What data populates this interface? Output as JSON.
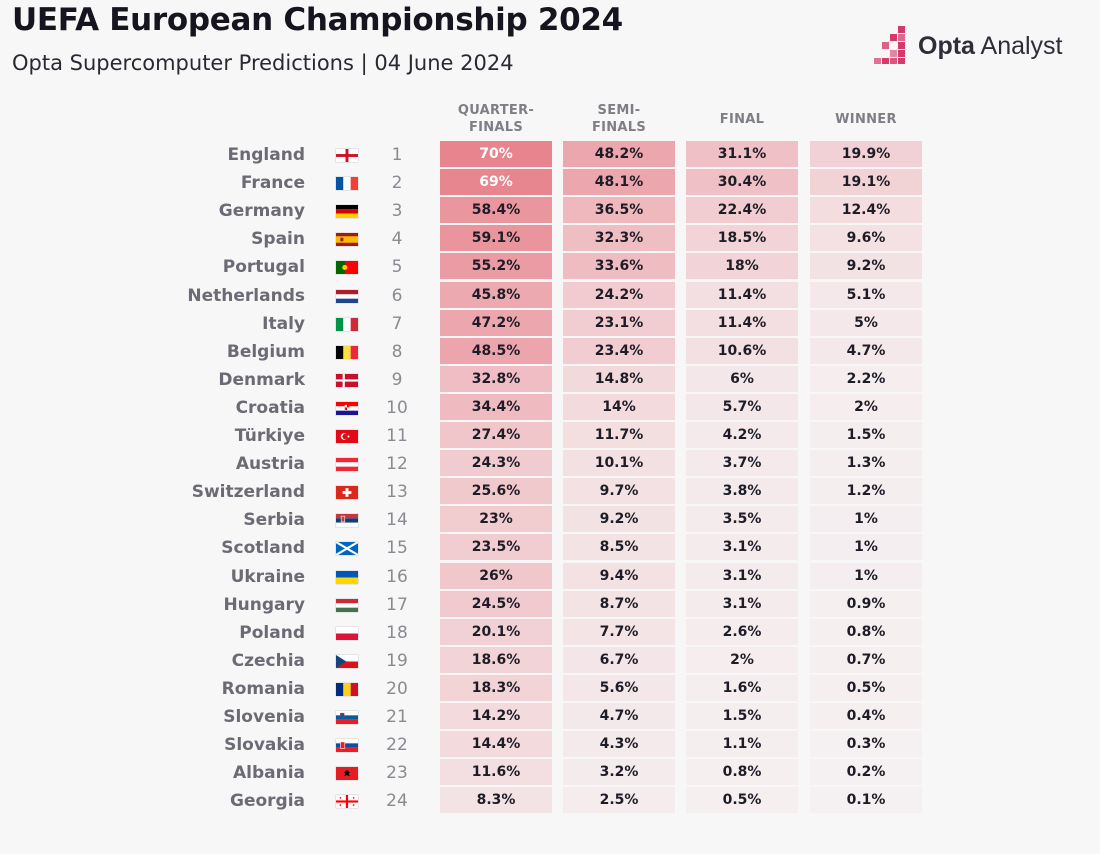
{
  "title": "UEFA European Championship 2024",
  "subtitle": "Opta Supercomputer Predictions | 04 June 2024",
  "logo": {
    "brand_bold": "Opta",
    "brand_light": " Analyst",
    "icon": "opta-bars-icon"
  },
  "colors": {
    "cell_max": "#e8848e",
    "cell_min": "#f5f0f1",
    "text_dark": "#1e1d27",
    "country_text": "#6b6b75"
  },
  "chart_data": {
    "type": "table",
    "title": "UEFA European Championship 2024",
    "subtitle": "Opta Supercomputer Predictions | 04 June 2024",
    "columns": [
      {
        "key": "qf",
        "label": "QUARTER-\nFINALS"
      },
      {
        "key": "sf",
        "label": "SEMI-\nFINALS"
      },
      {
        "key": "final",
        "label": "FINAL"
      },
      {
        "key": "winner",
        "label": "WINNER"
      }
    ],
    "rows": [
      {
        "country": "England",
        "flag": "eng",
        "rank": "1",
        "qf": "70%",
        "sf": "48.2%",
        "final": "31.1%",
        "winner": "19.9%"
      },
      {
        "country": "France",
        "flag": "fra",
        "rank": "2",
        "qf": "69%",
        "sf": "48.1%",
        "final": "30.4%",
        "winner": "19.1%"
      },
      {
        "country": "Germany",
        "flag": "ger",
        "rank": "3",
        "qf": "58.4%",
        "sf": "36.5%",
        "final": "22.4%",
        "winner": "12.4%"
      },
      {
        "country": "Spain",
        "flag": "esp",
        "rank": "4",
        "qf": "59.1%",
        "sf": "32.3%",
        "final": "18.5%",
        "winner": "9.6%"
      },
      {
        "country": "Portugal",
        "flag": "por",
        "rank": "5",
        "qf": "55.2%",
        "sf": "33.6%",
        "final": "18%",
        "winner": "9.2%"
      },
      {
        "country": "Netherlands",
        "flag": "ned",
        "rank": "6",
        "qf": "45.8%",
        "sf": "24.2%",
        "final": "11.4%",
        "winner": "5.1%"
      },
      {
        "country": "Italy",
        "flag": "ita",
        "rank": "7",
        "qf": "47.2%",
        "sf": "23.1%",
        "final": "11.4%",
        "winner": "5%"
      },
      {
        "country": "Belgium",
        "flag": "bel",
        "rank": "8",
        "qf": "48.5%",
        "sf": "23.4%",
        "final": "10.6%",
        "winner": "4.7%"
      },
      {
        "country": "Denmark",
        "flag": "den",
        "rank": "9",
        "qf": "32.8%",
        "sf": "14.8%",
        "final": "6%",
        "winner": "2.2%"
      },
      {
        "country": "Croatia",
        "flag": "cro",
        "rank": "10",
        "qf": "34.4%",
        "sf": "14%",
        "final": "5.7%",
        "winner": "2%"
      },
      {
        "country": "Türkiye",
        "flag": "tur",
        "rank": "11",
        "qf": "27.4%",
        "sf": "11.7%",
        "final": "4.2%",
        "winner": "1.5%"
      },
      {
        "country": "Austria",
        "flag": "aut",
        "rank": "12",
        "qf": "24.3%",
        "sf": "10.1%",
        "final": "3.7%",
        "winner": "1.3%"
      },
      {
        "country": "Switzerland",
        "flag": "sui",
        "rank": "13",
        "qf": "25.6%",
        "sf": "9.7%",
        "final": "3.8%",
        "winner": "1.2%"
      },
      {
        "country": "Serbia",
        "flag": "srb",
        "rank": "14",
        "qf": "23%",
        "sf": "9.2%",
        "final": "3.5%",
        "winner": "1%"
      },
      {
        "country": "Scotland",
        "flag": "sco",
        "rank": "15",
        "qf": "23.5%",
        "sf": "8.5%",
        "final": "3.1%",
        "winner": "1%"
      },
      {
        "country": "Ukraine",
        "flag": "ukr",
        "rank": "16",
        "qf": "26%",
        "sf": "9.4%",
        "final": "3.1%",
        "winner": "1%"
      },
      {
        "country": "Hungary",
        "flag": "hun",
        "rank": "17",
        "qf": "24.5%",
        "sf": "8.7%",
        "final": "3.1%",
        "winner": "0.9%"
      },
      {
        "country": "Poland",
        "flag": "pol",
        "rank": "18",
        "qf": "20.1%",
        "sf": "7.7%",
        "final": "2.6%",
        "winner": "0.8%"
      },
      {
        "country": "Czechia",
        "flag": "cze",
        "rank": "19",
        "qf": "18.6%",
        "sf": "6.7%",
        "final": "2%",
        "winner": "0.7%"
      },
      {
        "country": "Romania",
        "flag": "rou",
        "rank": "20",
        "qf": "18.3%",
        "sf": "5.6%",
        "final": "1.6%",
        "winner": "0.5%"
      },
      {
        "country": "Slovenia",
        "flag": "svn",
        "rank": "21",
        "qf": "14.2%",
        "sf": "4.7%",
        "final": "1.5%",
        "winner": "0.4%"
      },
      {
        "country": "Slovakia",
        "flag": "svk",
        "rank": "22",
        "qf": "14.4%",
        "sf": "4.3%",
        "final": "1.1%",
        "winner": "0.3%"
      },
      {
        "country": "Albania",
        "flag": "alb",
        "rank": "23",
        "qf": "11.6%",
        "sf": "3.2%",
        "final": "0.8%",
        "winner": "0.2%"
      },
      {
        "country": "Georgia",
        "flag": "geo",
        "rank": "24",
        "qf": "8.3%",
        "sf": "2.5%",
        "final": "0.5%",
        "winner": "0.1%"
      }
    ]
  }
}
